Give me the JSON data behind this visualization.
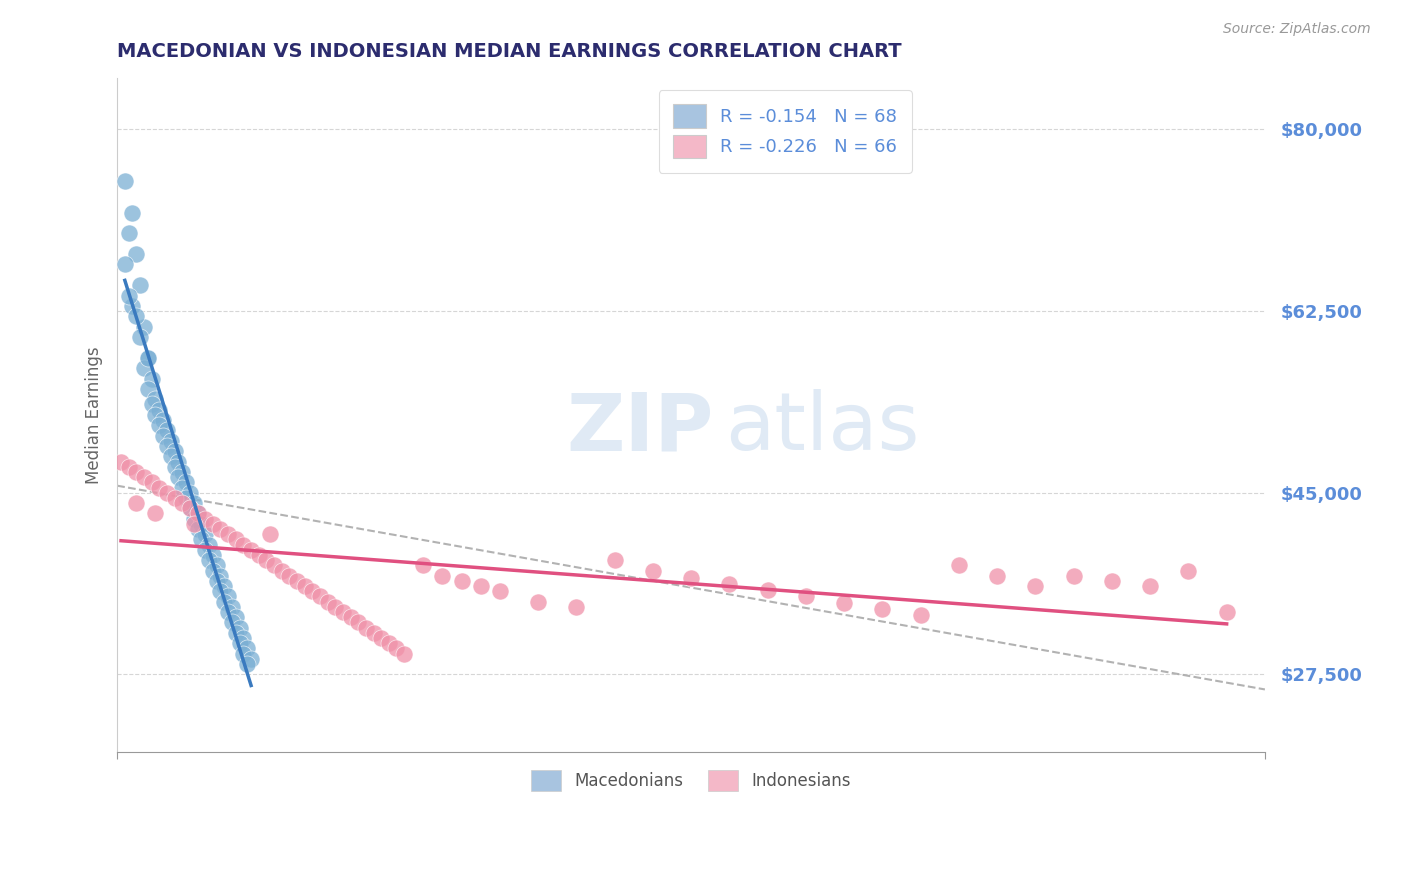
{
  "title": "MACEDONIAN VS INDONESIAN MEDIAN EARNINGS CORRELATION CHART",
  "source_text": "Source: ZipAtlas.com",
  "ylabel": "Median Earnings",
  "yticks": [
    27500,
    45000,
    62500,
    80000
  ],
  "ytick_labels": [
    "$27,500",
    "$45,000",
    "$62,500",
    "$80,000"
  ],
  "xlim": [
    0.0,
    0.3
  ],
  "ylim": [
    20000,
    85000
  ],
  "legend_entries": [
    {
      "label": "R = -0.154   N = 68",
      "color": "#a8c4e0"
    },
    {
      "label": "R = -0.226   N = 66",
      "color": "#f4b8c8"
    }
  ],
  "legend_bottom": [
    {
      "label": "Macedonians",
      "color": "#a8c4e0"
    },
    {
      "label": "Indonesians",
      "color": "#f4b8c8"
    }
  ],
  "watermark_zip": "ZIP",
  "watermark_atlas": "atlas",
  "blue_color": "#7bafd4",
  "pink_color": "#f090a8",
  "title_color": "#2c2c6e",
  "axis_label_color": "#5b8dd9",
  "R_label_color": "#5b8dd9",
  "macedonians_x": [
    0.002,
    0.004,
    0.003,
    0.005,
    0.006,
    0.004,
    0.007,
    0.006,
    0.008,
    0.007,
    0.009,
    0.008,
    0.01,
    0.009,
    0.011,
    0.01,
    0.012,
    0.011,
    0.013,
    0.012,
    0.014,
    0.013,
    0.015,
    0.014,
    0.016,
    0.015,
    0.017,
    0.016,
    0.018,
    0.017,
    0.019,
    0.018,
    0.02,
    0.019,
    0.021,
    0.02,
    0.022,
    0.021,
    0.023,
    0.022,
    0.024,
    0.023,
    0.025,
    0.024,
    0.026,
    0.025,
    0.027,
    0.026,
    0.028,
    0.027,
    0.029,
    0.028,
    0.03,
    0.029,
    0.031,
    0.03,
    0.032,
    0.031,
    0.033,
    0.032,
    0.034,
    0.033,
    0.035,
    0.034,
    0.002,
    0.005,
    0.008,
    0.003
  ],
  "macedonians_y": [
    75000,
    72000,
    70000,
    68000,
    65000,
    63000,
    61000,
    60000,
    58000,
    57000,
    56000,
    55000,
    54000,
    53500,
    53000,
    52500,
    52000,
    51500,
    51000,
    50500,
    50000,
    49500,
    49000,
    48500,
    48000,
    47500,
    47000,
    46500,
    46000,
    45500,
    45000,
    44500,
    44000,
    43500,
    43000,
    42500,
    42000,
    41500,
    41000,
    40500,
    40000,
    39500,
    39000,
    38500,
    38000,
    37500,
    37000,
    36500,
    36000,
    35500,
    35000,
    34500,
    34000,
    33500,
    33000,
    32500,
    32000,
    31500,
    31000,
    30500,
    30000,
    29500,
    29000,
    28500,
    67000,
    62000,
    58000,
    64000
  ],
  "indonesians_x": [
    0.001,
    0.003,
    0.005,
    0.007,
    0.009,
    0.011,
    0.013,
    0.015,
    0.017,
    0.019,
    0.021,
    0.023,
    0.025,
    0.027,
    0.029,
    0.031,
    0.033,
    0.035,
    0.037,
    0.039,
    0.041,
    0.043,
    0.045,
    0.047,
    0.049,
    0.051,
    0.053,
    0.055,
    0.057,
    0.059,
    0.061,
    0.063,
    0.065,
    0.067,
    0.069,
    0.071,
    0.073,
    0.075,
    0.08,
    0.085,
    0.09,
    0.095,
    0.1,
    0.11,
    0.12,
    0.13,
    0.14,
    0.15,
    0.16,
    0.17,
    0.18,
    0.19,
    0.2,
    0.21,
    0.22,
    0.23,
    0.24,
    0.25,
    0.26,
    0.27,
    0.28,
    0.29,
    0.005,
    0.01,
    0.02,
    0.04
  ],
  "indonesians_y": [
    48000,
    47500,
    47000,
    46500,
    46000,
    45500,
    45000,
    44500,
    44000,
    43500,
    43000,
    42500,
    42000,
    41500,
    41000,
    40500,
    40000,
    39500,
    39000,
    38500,
    38000,
    37500,
    37000,
    36500,
    36000,
    35500,
    35000,
    34500,
    34000,
    33500,
    33000,
    32500,
    32000,
    31500,
    31000,
    30500,
    30000,
    29500,
    38000,
    37000,
    36500,
    36000,
    35500,
    34500,
    34000,
    38500,
    37500,
    36800,
    36200,
    35600,
    35000,
    34400,
    33800,
    33200,
    38000,
    37000,
    36000,
    37000,
    36500,
    36000,
    37500,
    33500,
    44000,
    43000,
    42000,
    41000
  ]
}
